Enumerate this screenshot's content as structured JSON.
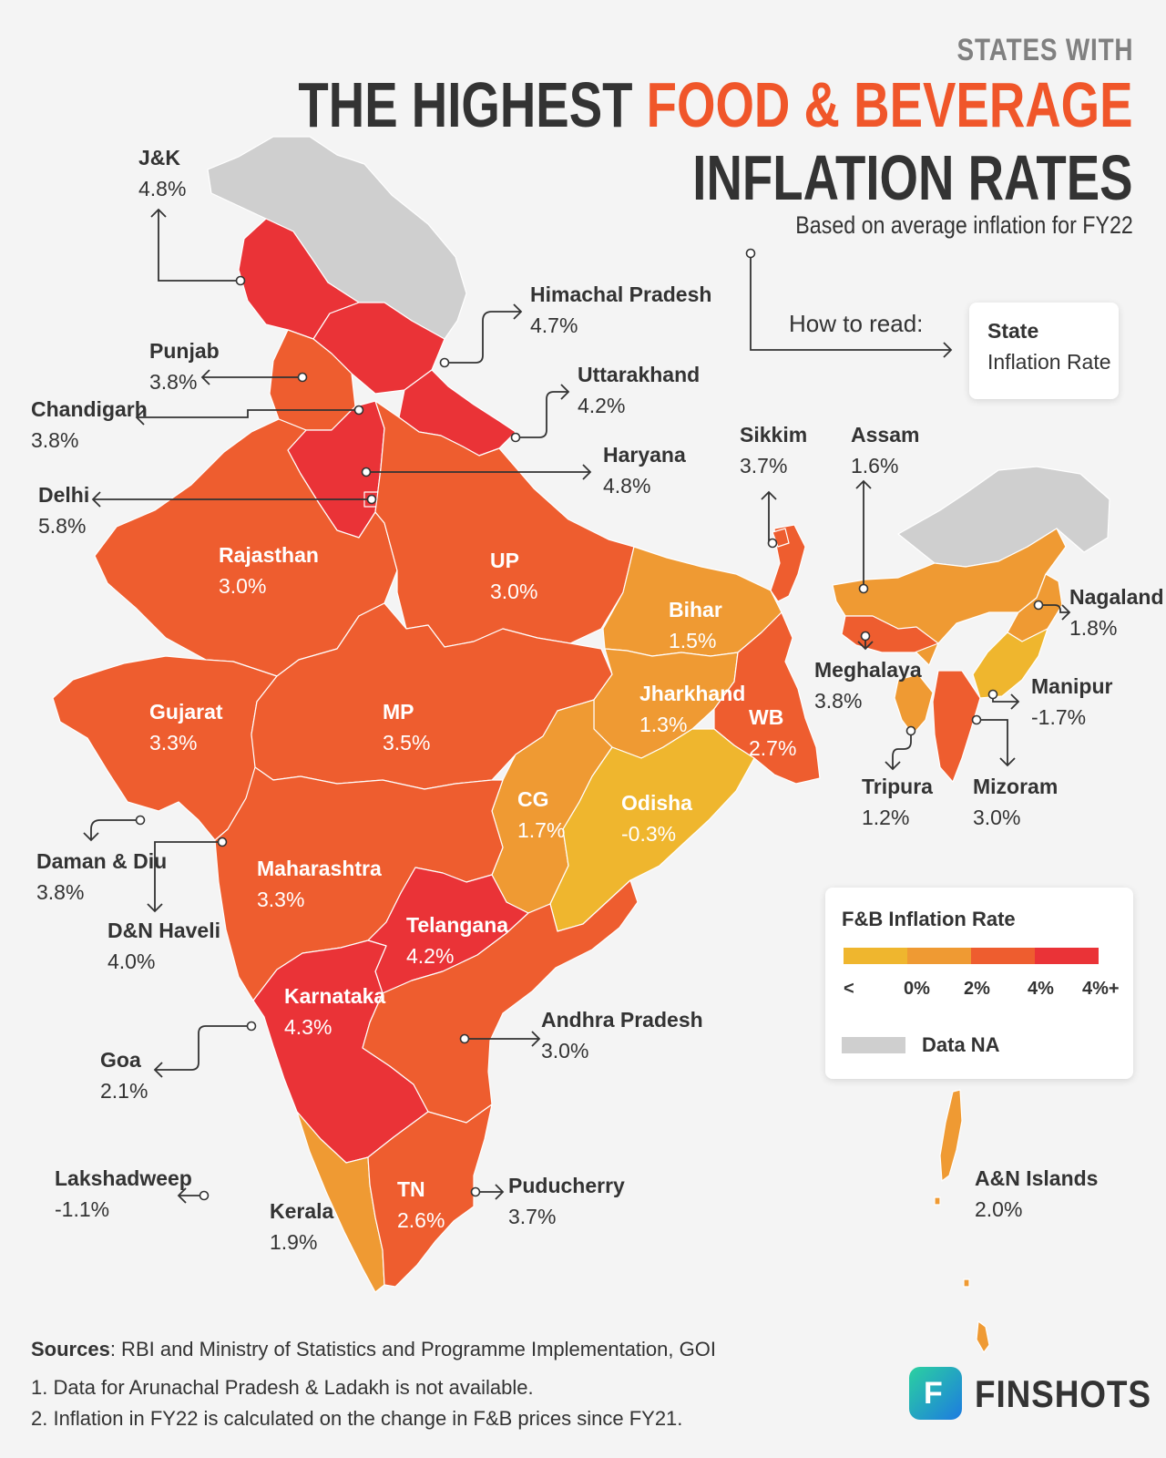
{
  "header": {
    "pre_title": "STATES WITH",
    "title_part1": "THE HIGHEST ",
    "title_highlight": "FOOD & BEVERAGE",
    "title_line2": "INFLATION RATES",
    "subtitle": "Based on average inflation for FY22"
  },
  "how_to_read": {
    "label": "How to read:",
    "box_name": "State",
    "box_value": "Inflation Rate"
  },
  "colors": {
    "band_below_0": "#efb62e",
    "band_0_2": "#ef9a33",
    "band_2_4": "#ee5d2f",
    "band_above_4": "#ea3337",
    "data_na": "#cfcfcf",
    "background": "#f4f4f4"
  },
  "regions": [
    {
      "name": "J&K",
      "value": "4.8%"
    },
    {
      "name": "Himachal Pradesh",
      "value": "4.7%"
    },
    {
      "name": "Punjab",
      "value": "3.8%"
    },
    {
      "name": "Chandigarh",
      "value": "3.8%"
    },
    {
      "name": "Uttarakhand",
      "value": "4.2%"
    },
    {
      "name": "Haryana",
      "value": "4.8%"
    },
    {
      "name": "Delhi",
      "value": "5.8%"
    },
    {
      "name": "Rajasthan",
      "value": "3.0%"
    },
    {
      "name": "UP",
      "value": "3.0%"
    },
    {
      "name": "Bihar",
      "value": "1.5%"
    },
    {
      "name": "Sikkim",
      "value": "3.7%"
    },
    {
      "name": "Assam",
      "value": "1.6%"
    },
    {
      "name": "Nagaland",
      "value": "1.8%"
    },
    {
      "name": "Meghalaya",
      "value": "3.8%"
    },
    {
      "name": "Manipur",
      "value": "-1.7%"
    },
    {
      "name": "Jharkhand",
      "value": "1.3%"
    },
    {
      "name": "WB",
      "value": "2.7%"
    },
    {
      "name": "Gujarat",
      "value": "3.3%"
    },
    {
      "name": "MP",
      "value": "3.5%"
    },
    {
      "name": "Tripura",
      "value": "1.2%"
    },
    {
      "name": "Mizoram",
      "value": "3.0%"
    },
    {
      "name": "CG",
      "value": "1.7%"
    },
    {
      "name": "Odisha",
      "value": "-0.3%"
    },
    {
      "name": "Daman & Diu",
      "value": "3.8%"
    },
    {
      "name": "Maharashtra",
      "value": "3.3%"
    },
    {
      "name": "D&N Haveli",
      "value": "4.0%"
    },
    {
      "name": "Telangana",
      "value": "4.2%"
    },
    {
      "name": "Karnataka",
      "value": "4.3%"
    },
    {
      "name": "Goa",
      "value": "2.1%"
    },
    {
      "name": "Andhra Pradesh",
      "value": "3.0%"
    },
    {
      "name": "Lakshadweep",
      "value": "-1.1%"
    },
    {
      "name": "Kerala",
      "value": "1.9%"
    },
    {
      "name": "TN",
      "value": "2.6%"
    },
    {
      "name": "Puducherry",
      "value": "3.7%"
    },
    {
      "name": "A&N Islands",
      "value": "2.0%"
    }
  ],
  "legend": {
    "title": "F&B Inflation Rate",
    "ticks": [
      "<",
      "0%",
      "2%",
      "4%",
      "4%+"
    ],
    "na_label": "Data NA"
  },
  "footer": {
    "sources_label": "Sources",
    "sources_text": ": RBI and Ministry of Statistics and Programme Implementation, GOI",
    "note1": "1. Data for Arunachal Pradesh & Ladakh is not available.",
    "note2": "2. Inflation in FY22 is calculated on the change in F&B prices since FY21.",
    "brand": "FINSHOTS"
  }
}
